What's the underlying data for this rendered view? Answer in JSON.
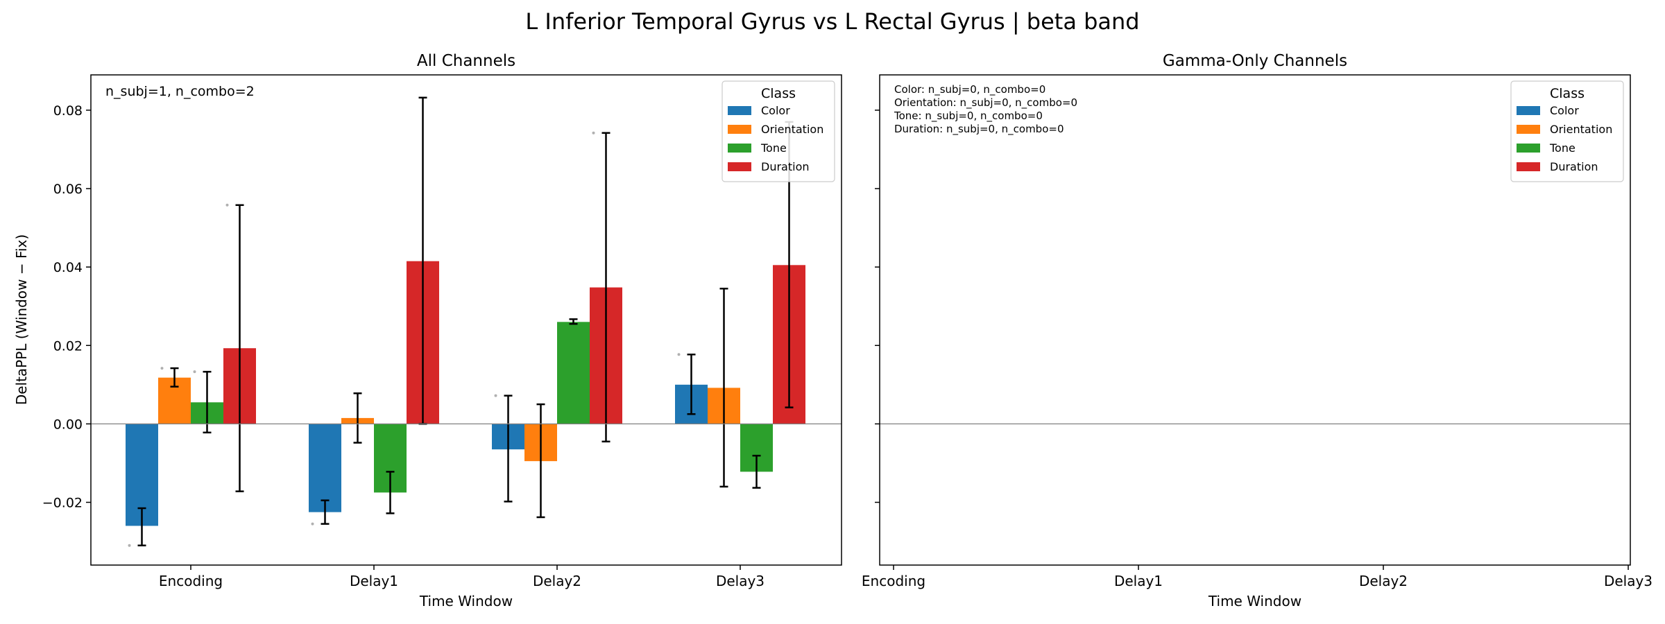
{
  "figure": {
    "suptitle": "L Inferior Temporal Gyrus vs L Rectal Gyrus  |  beta band"
  },
  "colors": {
    "Color": "#1f77b4",
    "Orientation": "#ff7f0e",
    "Tone": "#2ca02c",
    "Duration": "#d62728"
  },
  "chart_data": [
    {
      "type": "bar",
      "title": "All Channels",
      "xlabel": "Time Window",
      "ylabel": "DeltaPPL (Window − Fix)",
      "annotation": "n_subj=1, n_combo=2",
      "categories": [
        "Encoding",
        "Delay1",
        "Delay2",
        "Delay3"
      ],
      "ylim": [
        -0.036,
        0.089
      ],
      "yticks": [
        -0.02,
        0.0,
        0.02,
        0.04,
        0.06,
        0.08
      ],
      "ytick_labels": [
        "−0.02",
        "0.00",
        "0.02",
        "0.04",
        "0.06",
        "0.08"
      ],
      "zero_line": true,
      "grid": false,
      "legend": {
        "title": "Class",
        "placement": "top-right",
        "entries": [
          "Color",
          "Orientation",
          "Tone",
          "Duration"
        ]
      },
      "series": [
        {
          "name": "Color",
          "values": [
            -0.026,
            -0.0225,
            -0.0065,
            0.01
          ],
          "err_low": [
            -0.031,
            -0.0255,
            -0.0198,
            0.0025
          ],
          "err_high": [
            -0.0215,
            -0.0195,
            0.0072,
            0.0177
          ],
          "points": [
            -0.031,
            -0.0255,
            0.0072,
            0.0177
          ]
        },
        {
          "name": "Orientation",
          "values": [
            0.0118,
            0.0015,
            -0.0095,
            0.0092
          ],
          "err_low": [
            0.0095,
            -0.0048,
            -0.0238,
            -0.016
          ],
          "err_high": [
            0.0142,
            0.0078,
            0.005,
            0.0345
          ],
          "points": [
            0.0142,
            null,
            null,
            null
          ]
        },
        {
          "name": "Tone",
          "values": [
            0.0055,
            -0.0175,
            0.026,
            -0.0122
          ],
          "err_low": [
            -0.0022,
            -0.0228,
            0.0255,
            -0.0163
          ],
          "err_high": [
            0.0133,
            -0.0122,
            0.0267,
            -0.0081
          ],
          "points": [
            0.0133,
            null,
            null,
            null
          ]
        },
        {
          "name": "Duration",
          "values": [
            0.0193,
            0.0415,
            0.0348,
            0.0405
          ],
          "err_low": [
            -0.0172,
            0.0,
            -0.0045,
            0.0042
          ],
          "err_high": [
            0.0558,
            0.0832,
            0.0742,
            0.077
          ],
          "points": [
            0.0558,
            null,
            0.0742,
            null
          ]
        }
      ]
    },
    {
      "type": "bar",
      "title": "Gamma-Only Channels",
      "xlabel": "Time Window",
      "ylabel": "",
      "categories": [
        "Encoding",
        "Delay1",
        "Delay2",
        "Delay3"
      ],
      "ylim": [
        -0.036,
        0.089
      ],
      "zero_line": true,
      "grid": false,
      "annotations": [
        "Color: n_subj=0, n_combo=0",
        "Orientation: n_subj=0, n_combo=0",
        "Tone: n_subj=0, n_combo=0",
        "Duration: n_subj=0, n_combo=0"
      ],
      "legend": {
        "title": "Class",
        "placement": "top-right",
        "entries": [
          "Color",
          "Orientation",
          "Tone",
          "Duration"
        ]
      },
      "series": []
    }
  ]
}
